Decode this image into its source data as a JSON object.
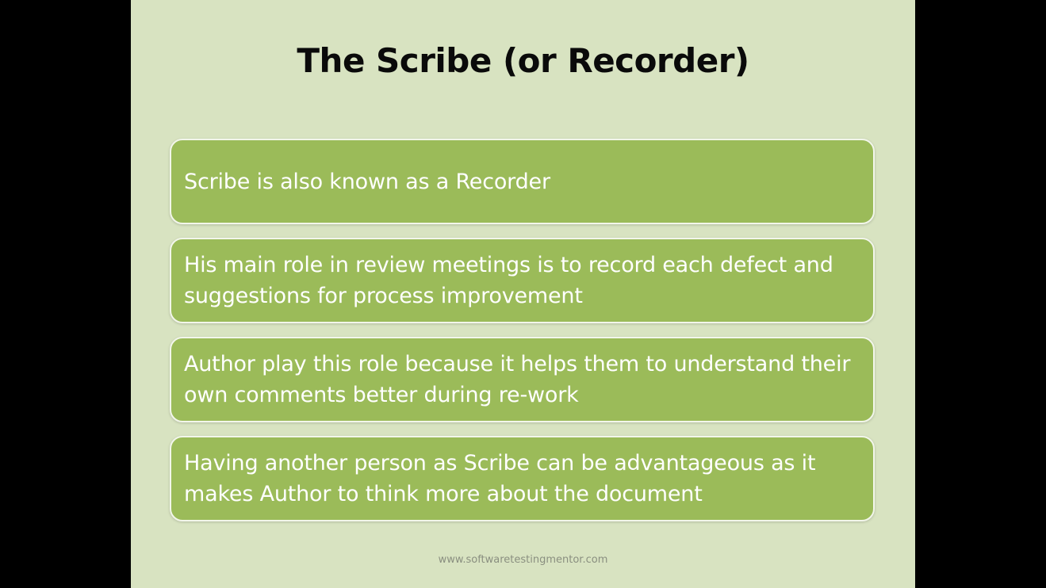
{
  "slide": {
    "title": "The Scribe (or Recorder)",
    "points": [
      "Scribe is also known as a Recorder",
      "His main role in review meetings is to record each defect and suggestions for process improvement",
      "Author play this role because it helps them to understand their own comments better during re-work",
      "Having another person as Scribe can be advantageous as it makes Author to think more about the document"
    ],
    "footer": "www.softwaretestingmentor.com"
  },
  "colors": {
    "slide_background": "#d8e3c1",
    "card_fill": "#9bbb59",
    "card_border": "#f2f6ea",
    "letterbox": "#000000"
  }
}
